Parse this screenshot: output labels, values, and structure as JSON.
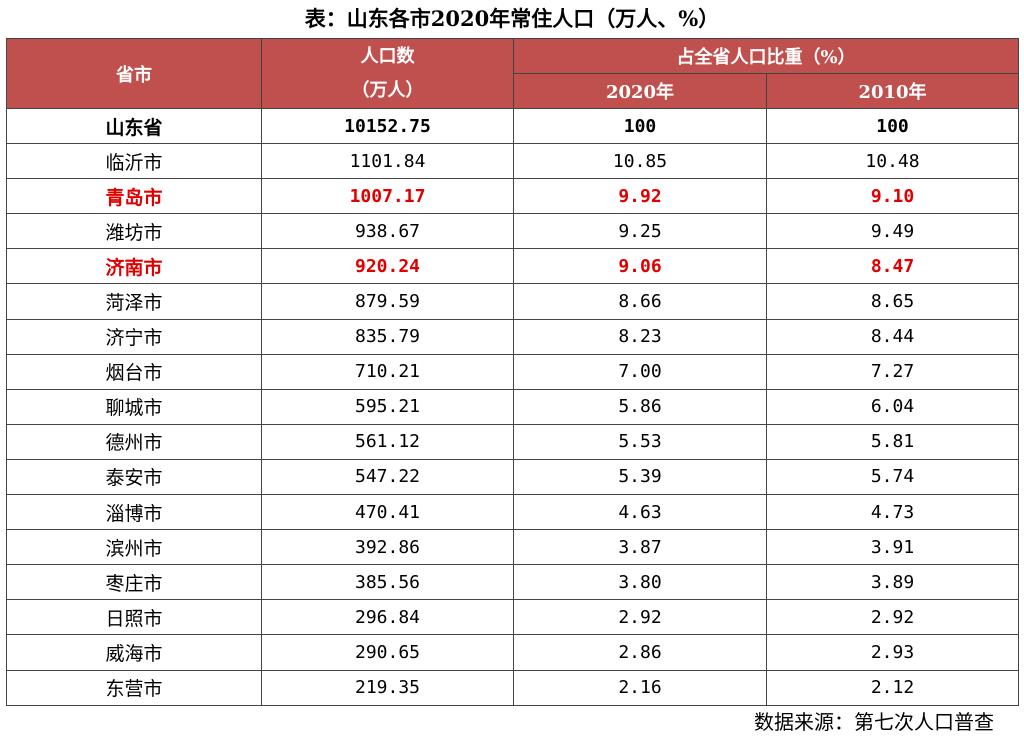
{
  "title": "表：山东各市2020年常住人口（万人、%）",
  "table": {
    "col_city": "省市",
    "col_pop_line1": "人口数",
    "col_pop_line2": "（万人）",
    "col_share": "占全省人口比重（%）",
    "col_2020": "2020年",
    "col_2010": "2010年",
    "rows": [
      {
        "city": "山东省",
        "pop": "10152.75",
        "s2020": "100",
        "s2010": "100",
        "style": "total"
      },
      {
        "city": "临沂市",
        "pop": "1101.84",
        "s2020": "10.85",
        "s2010": "10.48",
        "style": "normal"
      },
      {
        "city": "青岛市",
        "pop": "1007.17",
        "s2020": "9.92",
        "s2010": "9.10",
        "style": "highlight"
      },
      {
        "city": "潍坊市",
        "pop": "938.67",
        "s2020": "9.25",
        "s2010": "9.49",
        "style": "normal"
      },
      {
        "city": "济南市",
        "pop": "920.24",
        "s2020": "9.06",
        "s2010": "8.47",
        "style": "highlight"
      },
      {
        "city": "菏泽市",
        "pop": "879.59",
        "s2020": "8.66",
        "s2010": "8.65",
        "style": "normal"
      },
      {
        "city": "济宁市",
        "pop": "835.79",
        "s2020": "8.23",
        "s2010": "8.44",
        "style": "normal"
      },
      {
        "city": "烟台市",
        "pop": "710.21",
        "s2020": "7.00",
        "s2010": "7.27",
        "style": "normal"
      },
      {
        "city": "聊城市",
        "pop": "595.21",
        "s2020": "5.86",
        "s2010": "6.04",
        "style": "normal"
      },
      {
        "city": "德州市",
        "pop": "561.12",
        "s2020": "5.53",
        "s2010": "5.81",
        "style": "normal"
      },
      {
        "city": "泰安市",
        "pop": "547.22",
        "s2020": "5.39",
        "s2010": "5.74",
        "style": "normal"
      },
      {
        "city": "淄博市",
        "pop": "470.41",
        "s2020": "4.63",
        "s2010": "4.73",
        "style": "normal"
      },
      {
        "city": "滨州市",
        "pop": "392.86",
        "s2020": "3.87",
        "s2010": "3.91",
        "style": "normal"
      },
      {
        "city": "枣庄市",
        "pop": "385.56",
        "s2020": "3.80",
        "s2010": "3.89",
        "style": "normal"
      },
      {
        "city": "日照市",
        "pop": "296.84",
        "s2020": "2.92",
        "s2010": "2.92",
        "style": "normal"
      },
      {
        "city": "威海市",
        "pop": "290.65",
        "s2020": "2.86",
        "s2010": "2.93",
        "style": "normal"
      },
      {
        "city": "东营市",
        "pop": "219.35",
        "s2020": "2.16",
        "s2010": "2.12",
        "style": "normal"
      }
    ]
  },
  "source": "数据来源：第七次人口普查",
  "colors": {
    "header_bg": "#c0504d",
    "highlight_text": "#e00000"
  }
}
